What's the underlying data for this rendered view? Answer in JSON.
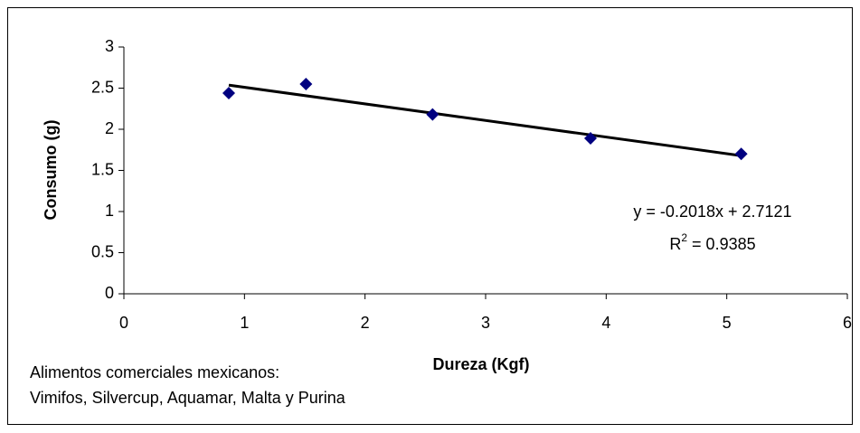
{
  "chart_data": {
    "type": "scatter",
    "x_label": "Dureza (Kgf)",
    "y_label": "Consumo (g)",
    "x": [
      0.87,
      1.51,
      2.56,
      3.87,
      5.12
    ],
    "series": [
      {
        "color": "#000080",
        "values": [
          2.44,
          2.55,
          2.18,
          1.89,
          1.7
        ]
      }
    ],
    "xlim": [
      0,
      6
    ],
    "xticks": [
      0,
      1,
      2,
      3,
      4,
      5,
      6
    ],
    "ylim": [
      0,
      3
    ],
    "yticks": [
      0,
      0.5,
      1,
      1.5,
      2,
      2.5,
      3
    ],
    "grid": false,
    "trendline": {
      "slope": -0.2018,
      "intercept": 2.7121,
      "color": "#000000",
      "equation": "y = -0.2018x + 2.7121",
      "r2_base": "R",
      "r2_sup": "2",
      "r2_rest": " = 0.9385"
    },
    "notes": [
      "Alimentos comerciales mexicanos:",
      "Vimifos, Silvercup, Aquamar, Malta y Purina"
    ]
  }
}
